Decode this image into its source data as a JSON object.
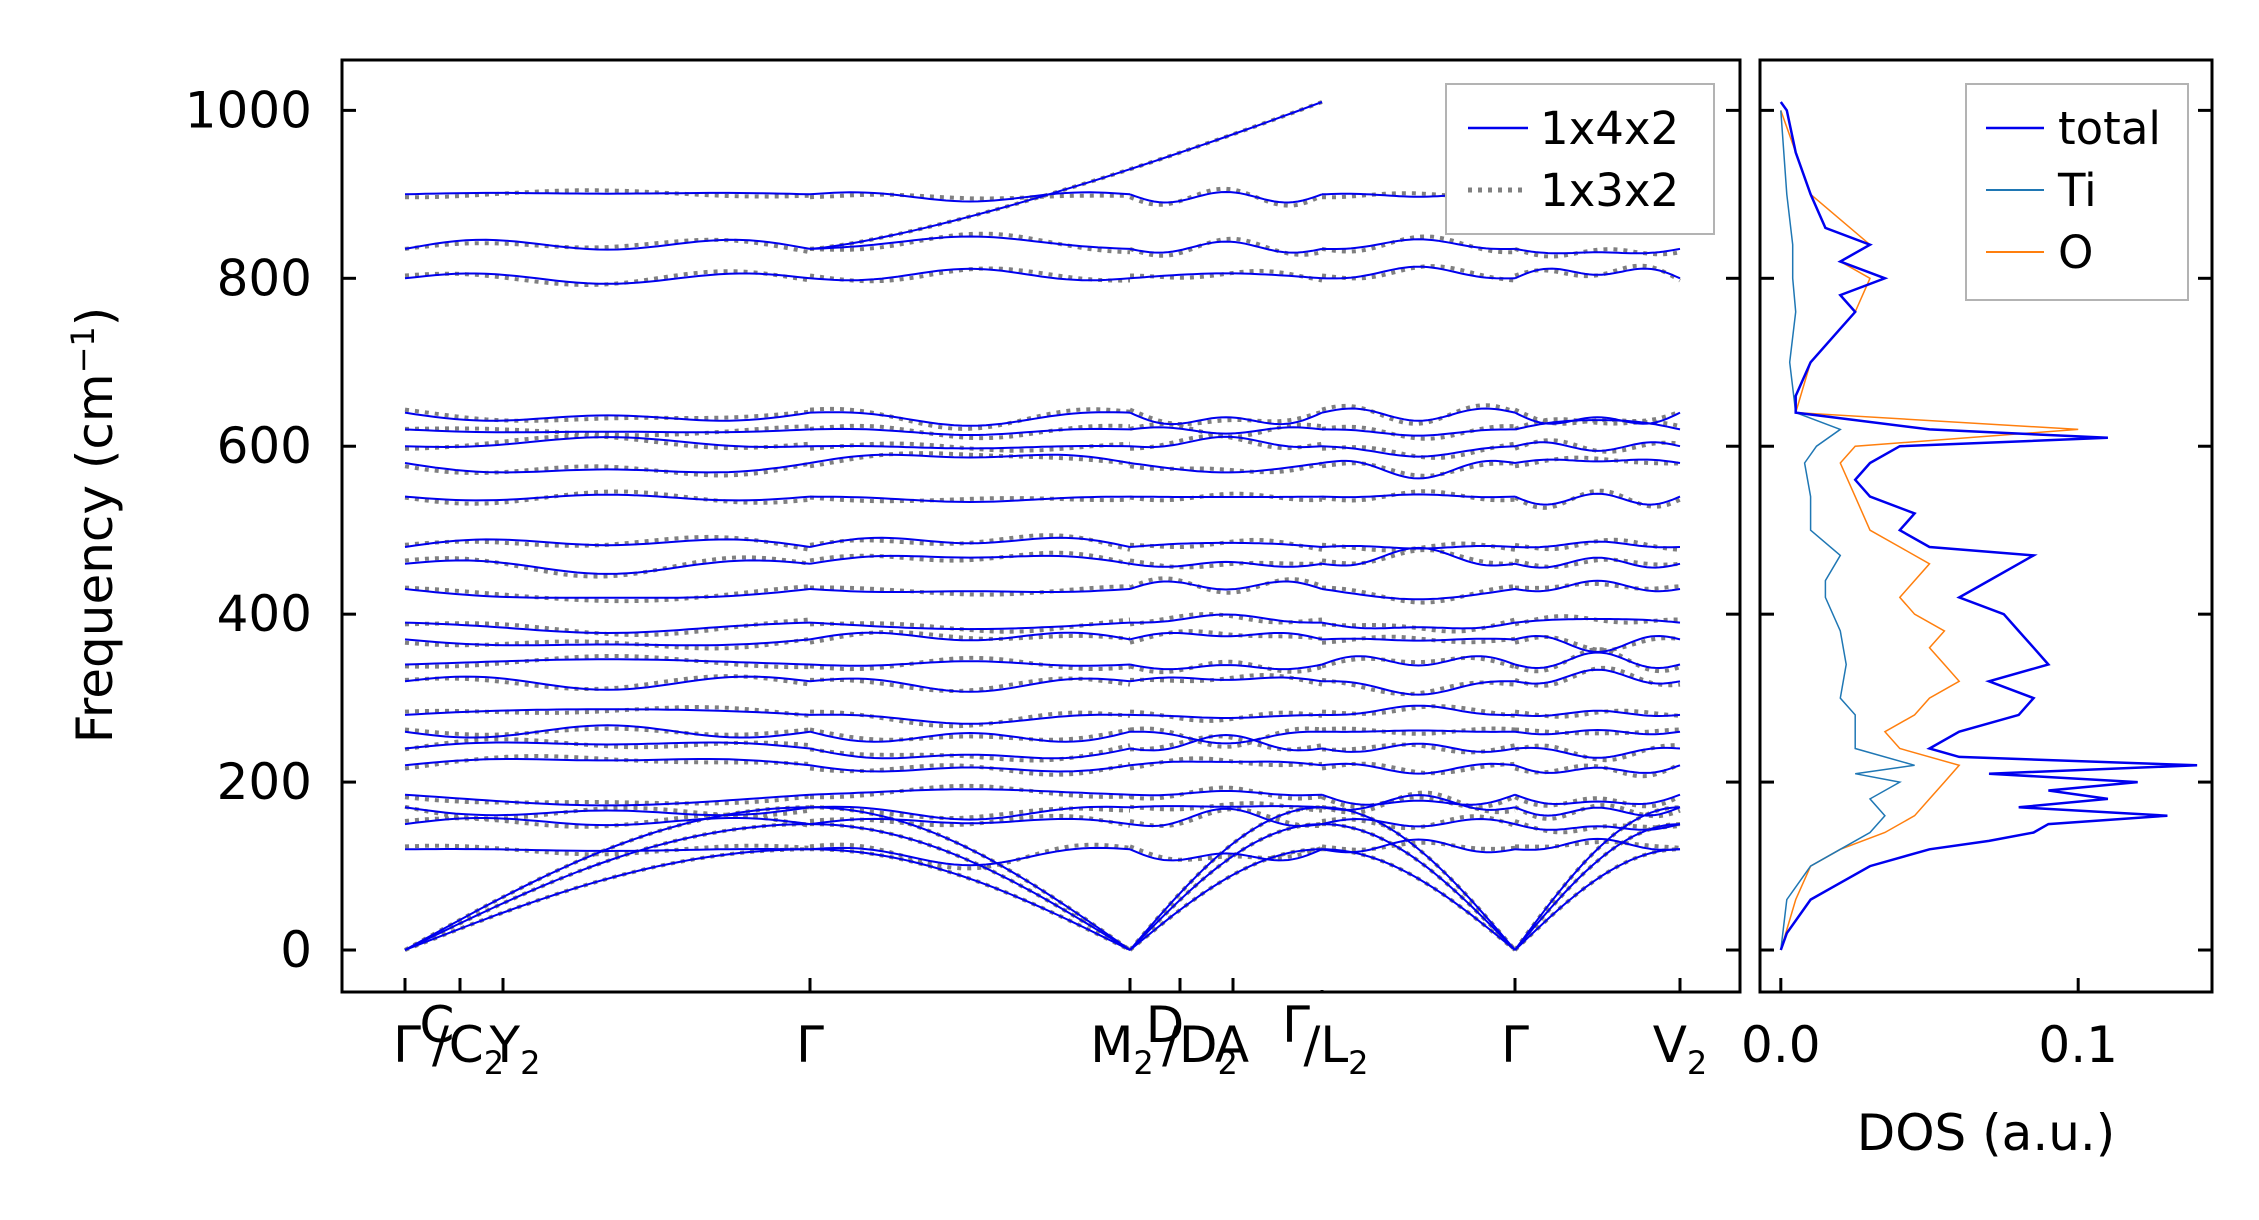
{
  "colors": {
    "band_primary": "#0000ee",
    "band_secondary": "#808080",
    "dos_total": "#0000ee",
    "dos_ti": "#1f77b4",
    "dos_o": "#ff7f0e",
    "axes": "#000000",
    "legend_border": "#b3b3b3"
  },
  "chart_data": [
    {
      "type": "line",
      "panel": "band-structure",
      "ylabel": "Frequency (cm$^{-1}$)",
      "ylabel_display": "Frequency (cm",
      "ylabel_sup": "−1",
      "ylabel_close": ")",
      "ylim": [
        -50,
        1060
      ],
      "yticks": [
        0,
        200,
        400,
        600,
        800,
        1000
      ],
      "xticks": [
        {
          "label": "Γ",
          "sub": ""
        },
        {
          "label": "C",
          "sub": "",
          "prefix": "",
          "small": true
        },
        {
          "label": "/C",
          "sub": "2"
        },
        {
          "label": "Y",
          "sub": "2"
        },
        {
          "label": "Γ",
          "sub": ""
        },
        {
          "label": "M",
          "sub": "2"
        },
        {
          "label": "D",
          "sub": "",
          "small": true
        },
        {
          "label": "/D",
          "sub": "2"
        },
        {
          "label": "A",
          "sub": ""
        },
        {
          "label": "Γ",
          "sub": "",
          "small": true
        },
        {
          "label": "/L",
          "sub": "2"
        },
        {
          "label": "Γ",
          "sub": ""
        },
        {
          "label": "V",
          "sub": "2"
        }
      ],
      "legend": {
        "position": "top-right",
        "entries": [
          {
            "name": "1x4x2",
            "style": "solid"
          },
          {
            "name": "1x3x2",
            "style": "dotted"
          }
        ]
      },
      "segments": [
        {
          "id": "s1",
          "k": [
            0.0,
            1.0
          ],
          "ticks": [
            "Γ",
            "Y2"
          ]
        },
        {
          "id": "s2",
          "k": [
            1.0,
            2.0
          ],
          "ticks": [
            "Y2",
            "Γ"
          ]
        },
        {
          "id": "s3",
          "k": [
            2.0,
            3.0
          ],
          "ticks": [
            "Γ",
            "M2"
          ]
        },
        {
          "id": "s4",
          "k": [
            3.0,
            4.0
          ],
          "ticks": [
            "M2",
            "A"
          ]
        },
        {
          "id": "s5",
          "k": [
            4.0,
            5.0
          ],
          "ticks": [
            "Γ",
            "Γ"
          ]
        },
        {
          "id": "s6",
          "k": [
            5.0,
            6.0
          ],
          "ticks": [
            "Γ",
            "V2"
          ]
        }
      ],
      "band_start_frequencies": [
        0,
        120,
        150,
        170,
        185,
        220,
        240,
        260,
        280,
        320,
        340,
        370,
        390,
        430,
        460,
        480,
        540,
        580,
        600,
        620,
        640,
        800,
        835,
        900
      ],
      "acoustic_gamma_points": [
        0,
        2,
        5
      ]
    },
    {
      "type": "line",
      "panel": "dos",
      "xlabel": "DOS (a.u.)",
      "xticks": [
        "0.0",
        "0.1"
      ],
      "xlim": [
        -0.007,
        0.145
      ],
      "ylim": [
        -50,
        1060
      ],
      "legend": {
        "position": "top-right",
        "entries": [
          "total",
          "Ti",
          "O"
        ]
      },
      "series": [
        {
          "name": "total",
          "frequency": [
            0,
            20,
            60,
            100,
            120,
            130,
            140,
            150,
            160,
            170,
            180,
            190,
            200,
            210,
            220,
            230,
            240,
            260,
            280,
            300,
            320,
            340,
            360,
            380,
            400,
            420,
            440,
            460,
            470,
            480,
            500,
            520,
            540,
            560,
            580,
            600,
            610,
            620,
            640,
            660,
            700,
            740,
            760,
            780,
            800,
            820,
            840,
            860,
            900,
            950,
            1000,
            1010
          ],
          "dos": [
            0.0,
            0.002,
            0.01,
            0.03,
            0.05,
            0.07,
            0.085,
            0.09,
            0.13,
            0.08,
            0.11,
            0.09,
            0.12,
            0.07,
            0.14,
            0.06,
            0.05,
            0.06,
            0.08,
            0.085,
            0.07,
            0.09,
            0.085,
            0.08,
            0.075,
            0.06,
            0.07,
            0.08,
            0.085,
            0.05,
            0.04,
            0.045,
            0.03,
            0.025,
            0.03,
            0.04,
            0.11,
            0.05,
            0.005,
            0.005,
            0.01,
            0.02,
            0.025,
            0.02,
            0.035,
            0.02,
            0.03,
            0.015,
            0.01,
            0.005,
            0.002,
            0.0
          ]
        },
        {
          "name": "Ti",
          "frequency": [
            0,
            60,
            100,
            120,
            140,
            160,
            180,
            200,
            210,
            220,
            240,
            260,
            280,
            300,
            340,
            380,
            420,
            440,
            470,
            500,
            540,
            580,
            600,
            620,
            640,
            700,
            760,
            800,
            840,
            900,
            1000
          ],
          "dos": [
            0.0,
            0.002,
            0.01,
            0.02,
            0.03,
            0.035,
            0.03,
            0.04,
            0.025,
            0.045,
            0.025,
            0.025,
            0.025,
            0.02,
            0.022,
            0.02,
            0.015,
            0.015,
            0.02,
            0.01,
            0.01,
            0.008,
            0.012,
            0.02,
            0.005,
            0.003,
            0.005,
            0.004,
            0.004,
            0.002,
            0.0
          ]
        },
        {
          "name": "O",
          "frequency": [
            0,
            60,
            100,
            120,
            140,
            160,
            180,
            200,
            220,
            240,
            260,
            280,
            300,
            320,
            340,
            360,
            380,
            400,
            420,
            440,
            460,
            480,
            500,
            540,
            580,
            600,
            620,
            640,
            700,
            740,
            760,
            800,
            820,
            840,
            900,
            1000
          ],
          "dos": [
            0.0,
            0.005,
            0.01,
            0.02,
            0.035,
            0.045,
            0.05,
            0.055,
            0.06,
            0.04,
            0.035,
            0.045,
            0.05,
            0.06,
            0.055,
            0.05,
            0.055,
            0.045,
            0.04,
            0.045,
            0.05,
            0.04,
            0.03,
            0.025,
            0.02,
            0.025,
            0.1,
            0.005,
            0.01,
            0.02,
            0.025,
            0.03,
            0.02,
            0.03,
            0.01,
            0.0
          ]
        }
      ]
    }
  ]
}
